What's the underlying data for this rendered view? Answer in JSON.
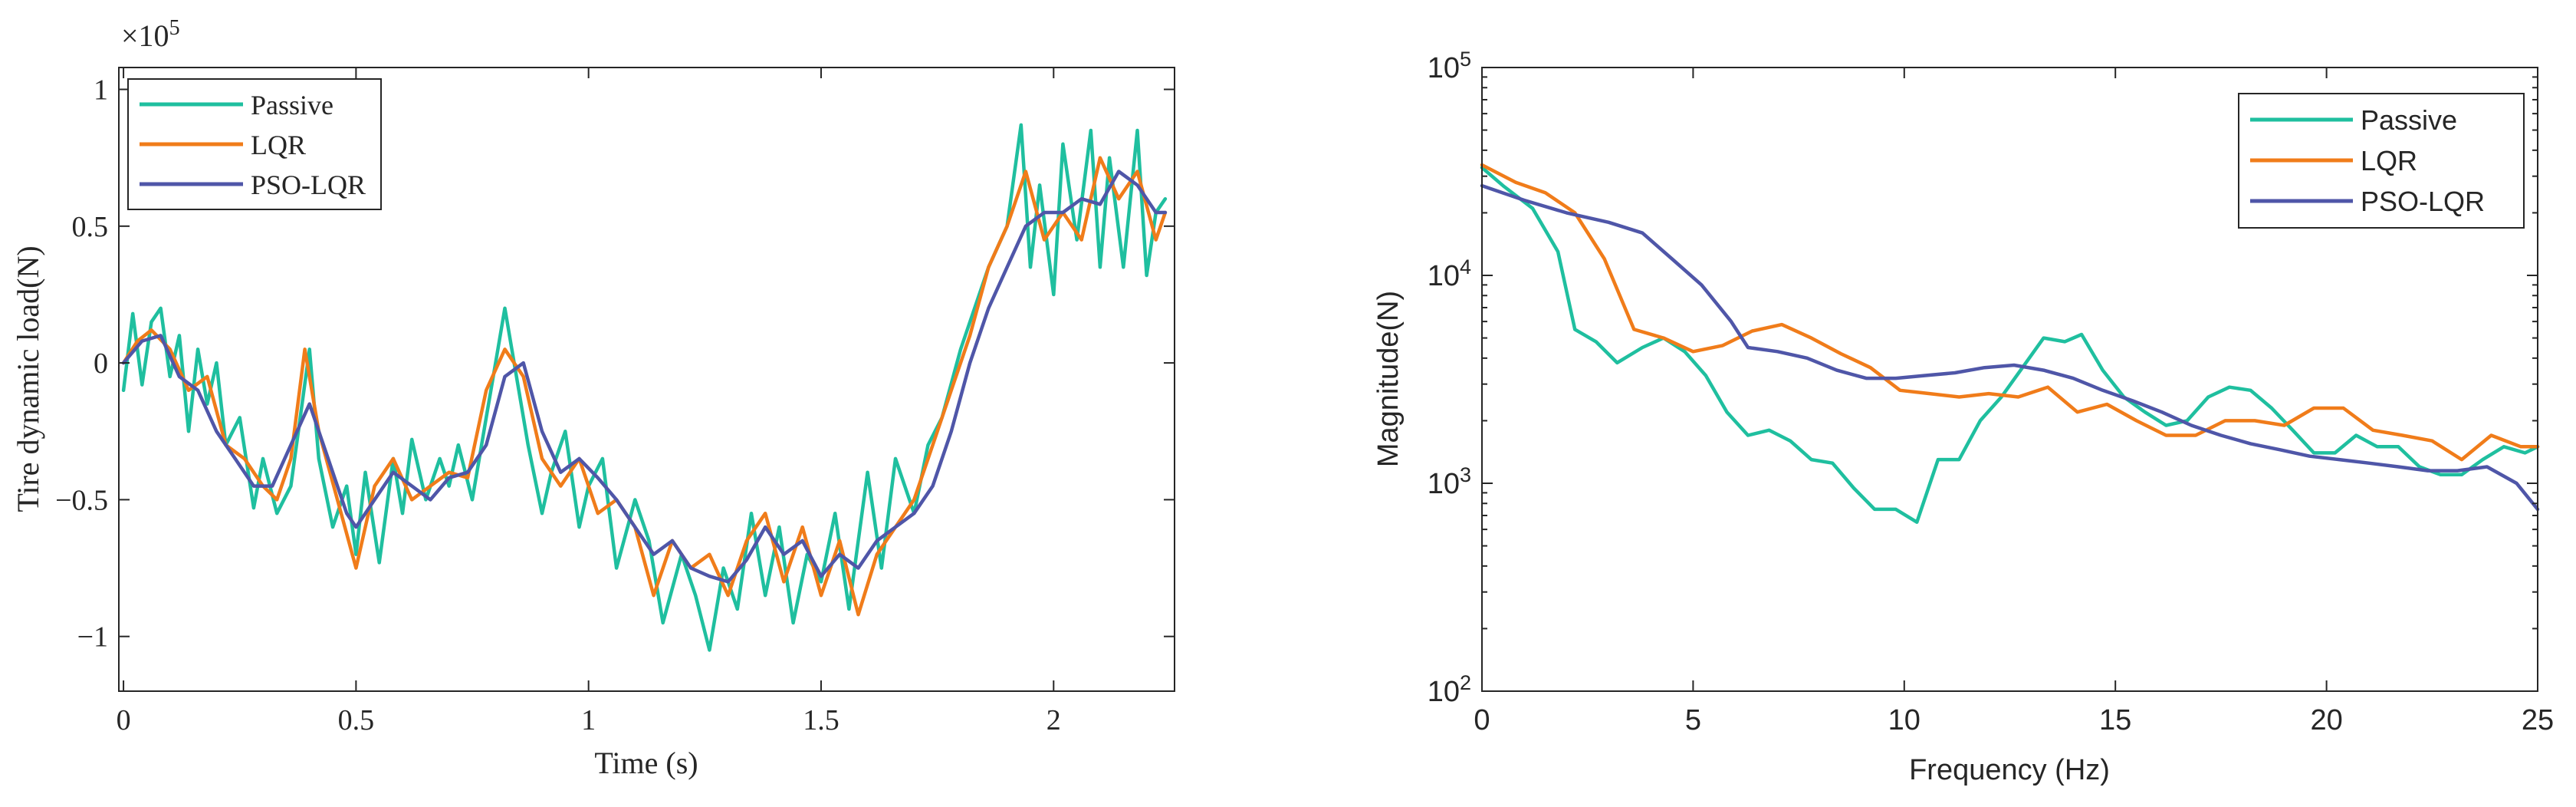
{
  "chart_data": [
    {
      "type": "line",
      "title": "",
      "xlabel": "Time (s)",
      "ylabel": "Tire dynamic load(N)",
      "exponent_label_base": "×10",
      "exponent_label_power": "5",
      "xlim": [
        -0.01,
        2.26
      ],
      "ylim": [
        -1.2,
        1.08
      ],
      "xticks": [
        0,
        0.5,
        1,
        1.5,
        2
      ],
      "xtick_labels": [
        "0",
        "0.5",
        "1",
        "1.5",
        "2"
      ],
      "yticks": [
        -1,
        -0.5,
        0,
        0.5,
        1
      ],
      "ytick_labels": [
        "−1",
        "−0.5",
        "0",
        "0.5",
        "1"
      ],
      "legend_position": "top-left",
      "units_note": "y values in units of 1e5 N",
      "series": [
        {
          "name": "Passive",
          "color": "#1fbf9f",
          "x": [
            0,
            0.02,
            0.04,
            0.06,
            0.08,
            0.1,
            0.12,
            0.14,
            0.16,
            0.18,
            0.2,
            0.22,
            0.25,
            0.28,
            0.3,
            0.33,
            0.36,
            0.38,
            0.4,
            0.42,
            0.45,
            0.48,
            0.5,
            0.52,
            0.55,
            0.58,
            0.6,
            0.62,
            0.65,
            0.68,
            0.7,
            0.72,
            0.75,
            0.78,
            0.8,
            0.82,
            0.85,
            0.87,
            0.9,
            0.92,
            0.95,
            0.98,
            1.0,
            1.03,
            1.06,
            1.1,
            1.13,
            1.16,
            1.2,
            1.23,
            1.26,
            1.29,
            1.32,
            1.35,
            1.38,
            1.41,
            1.44,
            1.47,
            1.5,
            1.53,
            1.56,
            1.6,
            1.63,
            1.66,
            1.7,
            1.73,
            1.76,
            1.8,
            1.83,
            1.86,
            1.9,
            1.93,
            1.95,
            1.97,
            2.0,
            2.02,
            2.05,
            2.08,
            2.1,
            2.12,
            2.15,
            2.18,
            2.2,
            2.22,
            2.24
          ],
          "values": [
            -0.1,
            0.18,
            -0.08,
            0.15,
            0.2,
            -0.05,
            0.1,
            -0.25,
            0.05,
            -0.15,
            0.0,
            -0.3,
            -0.2,
            -0.53,
            -0.35,
            -0.55,
            -0.45,
            -0.2,
            0.05,
            -0.35,
            -0.6,
            -0.45,
            -0.7,
            -0.4,
            -0.73,
            -0.35,
            -0.55,
            -0.28,
            -0.5,
            -0.35,
            -0.45,
            -0.3,
            -0.5,
            -0.2,
            0.0,
            0.2,
            -0.1,
            -0.3,
            -0.55,
            -0.4,
            -0.25,
            -0.6,
            -0.45,
            -0.35,
            -0.75,
            -0.5,
            -0.65,
            -0.95,
            -0.7,
            -0.85,
            -1.05,
            -0.75,
            -0.9,
            -0.55,
            -0.85,
            -0.6,
            -0.95,
            -0.7,
            -0.8,
            -0.55,
            -0.9,
            -0.4,
            -0.75,
            -0.35,
            -0.55,
            -0.3,
            -0.2,
            0.05,
            0.2,
            0.35,
            0.5,
            0.87,
            0.35,
            0.65,
            0.25,
            0.8,
            0.45,
            0.85,
            0.35,
            0.75,
            0.35,
            0.85,
            0.32,
            0.55,
            0.6
          ]
        },
        {
          "name": "LQR",
          "color": "#f07c1a",
          "x": [
            0,
            0.03,
            0.06,
            0.1,
            0.14,
            0.18,
            0.22,
            0.26,
            0.3,
            0.33,
            0.36,
            0.39,
            0.42,
            0.46,
            0.5,
            0.54,
            0.58,
            0.62,
            0.66,
            0.7,
            0.74,
            0.78,
            0.82,
            0.86,
            0.9,
            0.94,
            0.98,
            1.02,
            1.06,
            1.1,
            1.14,
            1.18,
            1.22,
            1.26,
            1.3,
            1.34,
            1.38,
            1.42,
            1.46,
            1.5,
            1.54,
            1.58,
            1.62,
            1.66,
            1.7,
            1.74,
            1.78,
            1.82,
            1.86,
            1.9,
            1.94,
            1.98,
            2.02,
            2.06,
            2.1,
            2.14,
            2.18,
            2.22,
            2.24
          ],
          "values": [
            0.0,
            0.08,
            0.12,
            0.05,
            -0.1,
            -0.05,
            -0.3,
            -0.35,
            -0.45,
            -0.5,
            -0.35,
            0.05,
            -0.25,
            -0.5,
            -0.75,
            -0.45,
            -0.35,
            -0.5,
            -0.45,
            -0.4,
            -0.42,
            -0.1,
            0.05,
            -0.05,
            -0.35,
            -0.45,
            -0.35,
            -0.55,
            -0.5,
            -0.6,
            -0.85,
            -0.65,
            -0.75,
            -0.7,
            -0.85,
            -0.65,
            -0.55,
            -0.8,
            -0.6,
            -0.85,
            -0.65,
            -0.92,
            -0.7,
            -0.6,
            -0.5,
            -0.3,
            -0.1,
            0.1,
            0.35,
            0.5,
            0.7,
            0.45,
            0.55,
            0.45,
            0.75,
            0.6,
            0.7,
            0.45,
            0.55
          ]
        },
        {
          "name": "PSO-LQR",
          "color": "#4f56a8",
          "x": [
            0,
            0.04,
            0.08,
            0.12,
            0.16,
            0.2,
            0.24,
            0.28,
            0.32,
            0.36,
            0.4,
            0.44,
            0.48,
            0.5,
            0.54,
            0.58,
            0.62,
            0.66,
            0.7,
            0.74,
            0.78,
            0.82,
            0.86,
            0.9,
            0.94,
            0.98,
            1.02,
            1.06,
            1.1,
            1.14,
            1.18,
            1.22,
            1.26,
            1.3,
            1.34,
            1.38,
            1.42,
            1.46,
            1.5,
            1.54,
            1.58,
            1.62,
            1.66,
            1.7,
            1.74,
            1.78,
            1.82,
            1.86,
            1.9,
            1.94,
            1.98,
            2.02,
            2.06,
            2.1,
            2.14,
            2.18,
            2.22,
            2.24
          ],
          "values": [
            0.0,
            0.08,
            0.1,
            -0.05,
            -0.1,
            -0.25,
            -0.35,
            -0.45,
            -0.45,
            -0.3,
            -0.15,
            -0.35,
            -0.55,
            -0.6,
            -0.5,
            -0.4,
            -0.45,
            -0.5,
            -0.42,
            -0.4,
            -0.3,
            -0.05,
            0.0,
            -0.25,
            -0.4,
            -0.35,
            -0.42,
            -0.5,
            -0.6,
            -0.7,
            -0.65,
            -0.75,
            -0.78,
            -0.8,
            -0.72,
            -0.6,
            -0.7,
            -0.65,
            -0.78,
            -0.7,
            -0.75,
            -0.65,
            -0.6,
            -0.55,
            -0.45,
            -0.25,
            0.0,
            0.2,
            0.35,
            0.5,
            0.55,
            0.55,
            0.6,
            0.58,
            0.7,
            0.65,
            0.55,
            0.55
          ]
        }
      ]
    },
    {
      "type": "line",
      "title": "",
      "xlabel": "Frequency (Hz)",
      "ylabel": "Magnitude(N)",
      "yscale": "log",
      "xlim": [
        0,
        25
      ],
      "ylim": [
        100,
        100000
      ],
      "xticks": [
        0,
        5,
        10,
        15,
        20,
        25
      ],
      "xtick_labels": [
        "0",
        "5",
        "10",
        "15",
        "20",
        "25"
      ],
      "yticks": [
        100,
        1000,
        10000,
        100000
      ],
      "ytick_labels": [
        {
          "base": "10",
          "power": "2"
        },
        {
          "base": "10",
          "power": "3"
        },
        {
          "base": "10",
          "power": "4"
        },
        {
          "base": "10",
          "power": "5"
        }
      ],
      "legend_position": "top-right",
      "series": [
        {
          "name": "Passive",
          "color": "#1fbf9f",
          "x": [
            0,
            0.5,
            1.2,
            1.8,
            2.2,
            2.7,
            3.2,
            3.8,
            4.3,
            4.8,
            5.3,
            5.8,
            6.3,
            6.8,
            7.3,
            7.8,
            8.3,
            8.8,
            9.3,
            9.8,
            10.3,
            10.8,
            11.3,
            11.8,
            12.3,
            12.8,
            13.3,
            13.8,
            14.2,
            14.7,
            15.2,
            15.7,
            16.2,
            16.7,
            17.2,
            17.7,
            18.2,
            18.7,
            19.2,
            19.7,
            20.2,
            20.7,
            21.2,
            21.7,
            22.2,
            22.7,
            23.2,
            23.7,
            24.2,
            24.7,
            25
          ],
          "values": [
            33000,
            27000,
            21000,
            13000,
            5500,
            4800,
            3800,
            4500,
            5000,
            4300,
            3300,
            2200,
            1700,
            1800,
            1600,
            1300,
            1250,
            950,
            750,
            750,
            650,
            1300,
            1300,
            2000,
            2600,
            3600,
            5000,
            4800,
            5200,
            3500,
            2600,
            2200,
            1900,
            2000,
            2600,
            2900,
            2800,
            2300,
            1800,
            1400,
            1400,
            1700,
            1500,
            1500,
            1200,
            1100,
            1100,
            1300,
            1500,
            1400,
            1500
          ]
        },
        {
          "name": "LQR",
          "color": "#f07c1a",
          "x": [
            0,
            0.8,
            1.5,
            2.2,
            2.9,
            3.6,
            4.3,
            5.0,
            5.7,
            6.4,
            7.1,
            7.8,
            8.5,
            9.2,
            9.9,
            10.6,
            11.3,
            12.0,
            12.7,
            13.4,
            14.1,
            14.8,
            15.5,
            16.2,
            16.9,
            17.6,
            18.3,
            19.0,
            19.7,
            20.4,
            21.1,
            21.8,
            22.5,
            23.2,
            23.9,
            24.6,
            25
          ],
          "values": [
            34000,
            28000,
            25000,
            20000,
            12000,
            5500,
            5000,
            4300,
            4600,
            5400,
            5800,
            5000,
            4200,
            3600,
            2800,
            2700,
            2600,
            2700,
            2600,
            2900,
            2200,
            2400,
            2000,
            1700,
            1700,
            2000,
            2000,
            1900,
            2300,
            2300,
            1800,
            1700,
            1600,
            1300,
            1700,
            1500,
            1500
          ]
        },
        {
          "name": "PSO-LQR",
          "color": "#4f56a8",
          "x": [
            0,
            1.0,
            2.0,
            3.0,
            3.8,
            4.5,
            5.2,
            5.9,
            6.3,
            7.0,
            7.7,
            8.4,
            9.1,
            9.8,
            10.5,
            11.2,
            11.9,
            12.6,
            13.3,
            14.0,
            14.7,
            15.4,
            16.1,
            16.8,
            17.5,
            18.2,
            18.9,
            19.6,
            20.3,
            21.0,
            21.7,
            22.4,
            23.1,
            23.8,
            24.5,
            25
          ],
          "values": [
            27000,
            23000,
            20000,
            18000,
            16000,
            12000,
            9000,
            6000,
            4500,
            4300,
            4000,
            3500,
            3200,
            3200,
            3300,
            3400,
            3600,
            3700,
            3500,
            3200,
            2800,
            2500,
            2200,
            1900,
            1700,
            1550,
            1450,
            1350,
            1300,
            1250,
            1200,
            1150,
            1150,
            1200,
            1000,
            750
          ]
        }
      ]
    }
  ]
}
